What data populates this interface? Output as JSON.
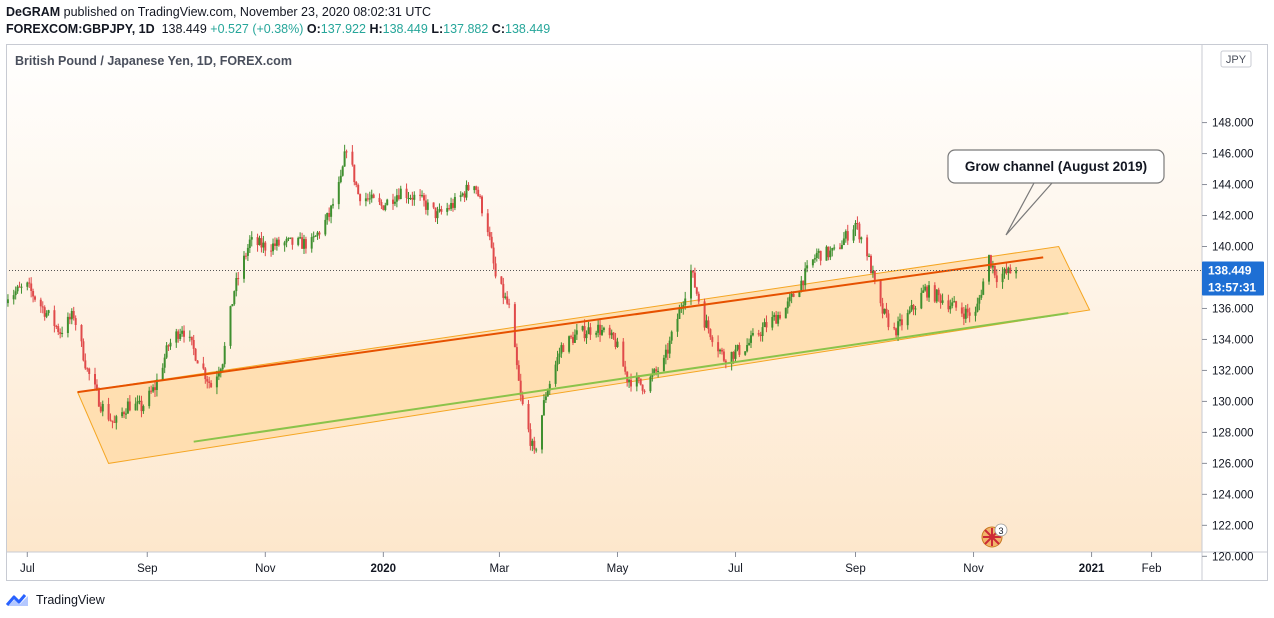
{
  "header": {
    "publisher": "DeGRAM",
    "published_text": "published on TradingView.com, November 23, 2020 08:02:31 UTC",
    "symbol": "FOREXCOM:GBPJPY, 1D",
    "last": "138.449",
    "change": "+0.527 (+0.38%)",
    "o_label": "O:",
    "o_value": "137.922",
    "h_label": "H:",
    "h_value": "138.449",
    "l_label": "L:",
    "l_value": "137.882",
    "c_label": "C:",
    "c_value": "138.449"
  },
  "chart": {
    "title": "British Pound / Japanese Yen, 1D, FOREX.com",
    "currency": "JPY",
    "last_price_label": "138.449",
    "countdown_label": "13:57:31",
    "annotation": "Grow channel (August 2019)",
    "events_badge": "3",
    "colors": {
      "up": "#3f8f2f",
      "down": "#e04a4a",
      "channel_fill": "#ffd9a3",
      "channel_border": "#f5a623",
      "upper_line": "#e65100",
      "lower_line": "#8bc34a",
      "price_label_bg": "#1e6fd4",
      "background_top": "#ffffff",
      "background_bottom": "#fde7cc"
    }
  },
  "footer": {
    "brand": "TradingView"
  },
  "chart_data": {
    "type": "candlestick",
    "title": "British Pound / Japanese Yen, 1D, FOREX.com",
    "y_axis": {
      "min": 119,
      "max": 150,
      "ticks": [
        120,
        122,
        124,
        126,
        128,
        130,
        132,
        134,
        136,
        138,
        140,
        142,
        144,
        146,
        148
      ],
      "tick_labels": [
        "120.000",
        "122.000",
        "124.000",
        "126.000",
        "128.000",
        "130.000",
        "132.000",
        "134.000",
        "136.000",
        "138.000",
        "140.000",
        "142.000",
        "144.000",
        "146.000",
        "148.000"
      ],
      "unit": "JPY"
    },
    "x_axis": {
      "start": "2019-06-20",
      "end": "2021-02-25",
      "ticks": [
        {
          "date": "2019-07-01",
          "label": "Jul",
          "bold": false
        },
        {
          "date": "2019-09-01",
          "label": "Sep",
          "bold": false
        },
        {
          "date": "2019-11-01",
          "label": "Nov",
          "bold": false
        },
        {
          "date": "2020-01-01",
          "label": "2020",
          "bold": true
        },
        {
          "date": "2020-03-01",
          "label": "Mar",
          "bold": false
        },
        {
          "date": "2020-05-01",
          "label": "May",
          "bold": false
        },
        {
          "date": "2020-07-01",
          "label": "Jul",
          "bold": false
        },
        {
          "date": "2020-09-01",
          "label": "Sep",
          "bold": false
        },
        {
          "date": "2020-11-01",
          "label": "Nov",
          "bold": false
        },
        {
          "date": "2021-01-01",
          "label": "2021",
          "bold": true
        },
        {
          "date": "2021-02-01",
          "label": "Feb",
          "bold": false
        }
      ]
    },
    "price_path": [
      [
        "2019-06-20",
        136.8
      ],
      [
        "2019-07-01",
        137.4
      ],
      [
        "2019-07-08",
        136.2
      ],
      [
        "2019-07-18",
        134.5
      ],
      [
        "2019-07-25",
        135.6
      ],
      [
        "2019-08-01",
        132.0
      ],
      [
        "2019-08-08",
        129.8
      ],
      [
        "2019-08-15",
        128.5
      ],
      [
        "2019-08-22",
        129.8
      ],
      [
        "2019-08-29",
        129.6
      ],
      [
        "2019-09-05",
        130.9
      ],
      [
        "2019-09-12",
        133.6
      ],
      [
        "2019-09-19",
        134.8
      ],
      [
        "2019-09-27",
        132.8
      ],
      [
        "2019-10-04",
        131.0
      ],
      [
        "2019-10-10",
        132.7
      ],
      [
        "2019-10-16",
        137.2
      ],
      [
        "2019-10-24",
        140.3
      ],
      [
        "2019-11-01",
        140.0
      ],
      [
        "2019-11-12",
        140.2
      ],
      [
        "2019-11-25",
        140.2
      ],
      [
        "2019-12-04",
        142.0
      ],
      [
        "2019-12-10",
        144.2
      ],
      [
        "2019-12-13",
        146.5
      ],
      [
        "2019-12-19",
        143.4
      ],
      [
        "2019-12-31",
        142.6
      ],
      [
        "2020-01-10",
        143.6
      ],
      [
        "2020-01-20",
        143.0
      ],
      [
        "2020-01-29",
        142.0
      ],
      [
        "2020-02-07",
        142.8
      ],
      [
        "2020-02-17",
        144.2
      ],
      [
        "2020-02-24",
        141.2
      ],
      [
        "2020-02-28",
        138.0
      ],
      [
        "2020-03-06",
        136.0
      ],
      [
        "2020-03-12",
        130.2
      ],
      [
        "2020-03-19",
        126.5
      ],
      [
        "2020-03-25",
        130.5
      ],
      [
        "2020-04-02",
        133.5
      ],
      [
        "2020-04-10",
        134.3
      ],
      [
        "2020-04-20",
        134.8
      ],
      [
        "2020-04-30",
        133.8
      ],
      [
        "2020-05-06",
        131.5
      ],
      [
        "2020-05-15",
        131.0
      ],
      [
        "2020-05-25",
        132.5
      ],
      [
        "2020-06-03",
        136.2
      ],
      [
        "2020-06-08",
        138.4
      ],
      [
        "2020-06-15",
        135.2
      ],
      [
        "2020-06-25",
        132.8
      ],
      [
        "2020-07-06",
        133.5
      ],
      [
        "2020-07-16",
        134.8
      ],
      [
        "2020-07-27",
        136.0
      ],
      [
        "2020-08-03",
        137.5
      ],
      [
        "2020-08-12",
        139.5
      ],
      [
        "2020-08-21",
        139.6
      ],
      [
        "2020-08-28",
        140.8
      ],
      [
        "2020-09-01",
        141.5
      ],
      [
        "2020-09-07",
        139.6
      ],
      [
        "2020-09-14",
        136.0
      ],
      [
        "2020-09-21",
        134.5
      ],
      [
        "2020-09-28",
        135.5
      ],
      [
        "2020-10-07",
        137.2
      ],
      [
        "2020-10-16",
        136.6
      ],
      [
        "2020-10-26",
        135.8
      ],
      [
        "2020-11-02",
        135.6
      ],
      [
        "2020-11-09",
        139.3
      ],
      [
        "2020-11-13",
        138.1
      ],
      [
        "2020-11-23",
        138.449
      ]
    ],
    "candles_approx": true,
    "last_price": 138.449,
    "channel": {
      "upper_line": [
        [
          "2019-07-27",
          130.6
        ],
        [
          "2020-12-07",
          139.3
        ]
      ],
      "lower_line": [
        [
          "2019-09-25",
          127.4
        ],
        [
          "2020-12-20",
          135.7
        ]
      ],
      "fill_polygon": [
        [
          "2019-07-27",
          130.6
        ],
        [
          "2020-12-15",
          140.0
        ],
        [
          "2020-12-31",
          135.9
        ],
        [
          "2019-08-12",
          126.0
        ]
      ]
    }
  }
}
